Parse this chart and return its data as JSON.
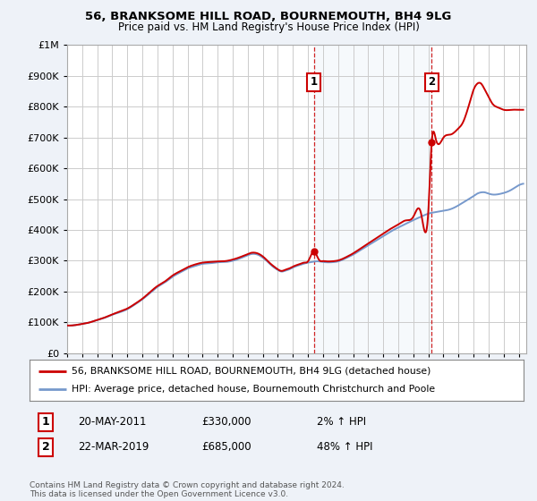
{
  "title": "56, BRANKSOME HILL ROAD, BOURNEMOUTH, BH4 9LG",
  "subtitle": "Price paid vs. HM Land Registry's House Price Index (HPI)",
  "ylabel_ticks": [
    "£0",
    "£100K",
    "£200K",
    "£300K",
    "£400K",
    "£500K",
    "£600K",
    "£700K",
    "£800K",
    "£900K",
    "£1M"
  ],
  "ytick_values": [
    0,
    100000,
    200000,
    300000,
    400000,
    500000,
    600000,
    700000,
    800000,
    900000,
    1000000
  ],
  "ylim": [
    0,
    1000000
  ],
  "xlim_start": 1995.0,
  "xlim_end": 2025.5,
  "xtick_years": [
    1995,
    1996,
    1997,
    1998,
    1999,
    2000,
    2001,
    2002,
    2003,
    2004,
    2005,
    2006,
    2007,
    2008,
    2009,
    2010,
    2011,
    2012,
    2013,
    2014,
    2015,
    2016,
    2017,
    2018,
    2019,
    2020,
    2021,
    2022,
    2023,
    2024,
    2025
  ],
  "sale1_x": 2011.38,
  "sale1_y": 330000,
  "sale2_x": 2019.22,
  "sale2_y": 685000,
  "sale_color": "#cc0000",
  "hpi_color": "#7799cc",
  "shade_color": "#dde8f5",
  "legend_sale": "56, BRANKSOME HILL ROAD, BOURNEMOUTH, BH4 9LG (detached house)",
  "legend_hpi": "HPI: Average price, detached house, Bournemouth Christchurch and Poole",
  "note1_num": "1",
  "note1_date": "20-MAY-2011",
  "note1_price": "£330,000",
  "note1_hpi": "2% ↑ HPI",
  "note2_num": "2",
  "note2_date": "22-MAR-2019",
  "note2_price": "£685,000",
  "note2_hpi": "48% ↑ HPI",
  "footer": "Contains HM Land Registry data © Crown copyright and database right 2024.\nThis data is licensed under the Open Government Licence v3.0.",
  "bg_color": "#eef2f8",
  "plot_bg": "#ffffff",
  "grid_color": "#cccccc",
  "vline_color": "#cc0000",
  "hpi_anchors_x": [
    1995.0,
    1995.5,
    1996.0,
    1996.5,
    1997.0,
    1997.5,
    1998.0,
    1998.5,
    1999.0,
    1999.5,
    2000.0,
    2000.5,
    2001.0,
    2001.5,
    2002.0,
    2002.5,
    2003.0,
    2003.5,
    2004.0,
    2004.5,
    2005.0,
    2005.5,
    2006.0,
    2006.5,
    2007.0,
    2007.25,
    2007.5,
    2007.75,
    2008.0,
    2008.25,
    2008.5,
    2008.75,
    2009.0,
    2009.25,
    2009.5,
    2009.75,
    2010.0,
    2010.25,
    2010.5,
    2010.75,
    2011.0,
    2011.25,
    2011.5,
    2011.75,
    2012.0,
    2012.25,
    2012.5,
    2012.75,
    2013.0,
    2013.5,
    2014.0,
    2014.5,
    2015.0,
    2015.5,
    2016.0,
    2016.5,
    2017.0,
    2017.5,
    2018.0,
    2018.5,
    2019.0,
    2019.5,
    2020.0,
    2020.5,
    2021.0,
    2021.5,
    2022.0,
    2022.25,
    2022.5,
    2022.75,
    2023.0,
    2023.25,
    2023.5,
    2023.75,
    2024.0,
    2024.5,
    2025.0,
    2025.3
  ],
  "hpi_anchors_y": [
    90000,
    91000,
    95000,
    100000,
    108000,
    115000,
    125000,
    133000,
    143000,
    158000,
    175000,
    195000,
    215000,
    230000,
    248000,
    262000,
    275000,
    283000,
    290000,
    292000,
    295000,
    296000,
    300000,
    308000,
    318000,
    322000,
    322000,
    318000,
    310000,
    300000,
    288000,
    278000,
    270000,
    265000,
    268000,
    272000,
    278000,
    283000,
    287000,
    291000,
    294000,
    296000,
    298000,
    298000,
    296000,
    295000,
    295000,
    296000,
    298000,
    308000,
    320000,
    335000,
    350000,
    365000,
    380000,
    395000,
    408000,
    420000,
    432000,
    443000,
    453000,
    458000,
    462000,
    468000,
    480000,
    495000,
    510000,
    518000,
    522000,
    522000,
    518000,
    515000,
    515000,
    517000,
    520000,
    530000,
    545000,
    550000
  ],
  "sale_anchors_x": [
    1995.0,
    1995.5,
    1996.0,
    1996.5,
    1997.0,
    1997.5,
    1998.0,
    1998.5,
    1999.0,
    1999.5,
    2000.0,
    2000.5,
    2001.0,
    2001.5,
    2002.0,
    2002.5,
    2003.0,
    2003.5,
    2004.0,
    2004.5,
    2005.0,
    2005.5,
    2006.0,
    2006.5,
    2007.0,
    2007.25,
    2007.5,
    2007.75,
    2008.0,
    2008.25,
    2008.5,
    2008.75,
    2009.0,
    2009.25,
    2009.5,
    2009.75,
    2010.0,
    2010.25,
    2010.5,
    2010.75,
    2011.0,
    2011.38,
    2011.75,
    2012.0,
    2012.25,
    2012.5,
    2012.75,
    2013.0,
    2013.5,
    2014.0,
    2014.5,
    2015.0,
    2015.5,
    2016.0,
    2016.5,
    2017.0,
    2017.5,
    2018.0,
    2018.5,
    2019.0,
    2019.22,
    2019.5,
    2020.0,
    2020.5,
    2021.0,
    2021.25,
    2021.5,
    2021.75,
    2022.0,
    2022.25,
    2022.5,
    2022.75,
    2023.0,
    2023.25,
    2023.5,
    2023.75,
    2024.0,
    2024.5,
    2025.0,
    2025.3
  ],
  "sale_anchors_y": [
    90000,
    91000,
    95000,
    100000,
    108000,
    116000,
    126000,
    135000,
    145000,
    160000,
    177000,
    198000,
    218000,
    233000,
    252000,
    266000,
    279000,
    288000,
    294000,
    296000,
    298000,
    299000,
    304000,
    312000,
    322000,
    326000,
    326000,
    322000,
    314000,
    303000,
    291000,
    281000,
    272000,
    267000,
    271000,
    275000,
    281000,
    286000,
    290000,
    294000,
    298000,
    330000,
    302000,
    299000,
    298000,
    298000,
    299000,
    301000,
    311000,
    324000,
    340000,
    356000,
    372000,
    388000,
    404000,
    418000,
    431000,
    443000,
    456000,
    466000,
    685000,
    693000,
    700000,
    710000,
    730000,
    745000,
    775000,
    815000,
    855000,
    875000,
    875000,
    855000,
    832000,
    810000,
    800000,
    795000,
    790000,
    790000,
    790000,
    790000
  ]
}
